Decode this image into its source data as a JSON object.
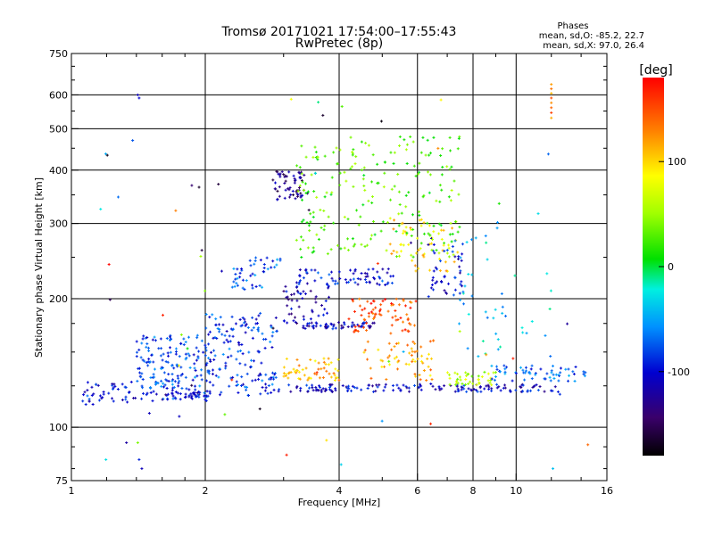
{
  "chart_data": {
    "type": "scatter",
    "title": "Tromsø 20171021 17:54:00–17:55:43",
    "subtitle": "RwPretec (8p)",
    "stats": {
      "heading": "Phases",
      "line_o": "mean, sd,O: -85.2, 22.7",
      "line_x": "mean, sd,X:  97.0, 26.4"
    },
    "xlabel": "Frequency [MHz]",
    "ylabel": "Stationary phase Virtual Height [km]",
    "x_scale": "log",
    "y_scale": "log",
    "xlim": [
      1,
      16
    ],
    "ylim": [
      75,
      750
    ],
    "x_ticks": [
      1,
      2,
      4,
      6,
      8,
      10,
      16
    ],
    "x_tick_labels": [
      "1",
      "2",
      "4",
      "6",
      "8",
      "10",
      "16"
    ],
    "y_ticks": [
      75,
      100,
      200,
      300,
      400,
      500,
      600,
      750
    ],
    "y_tick_labels": [
      "75",
      "100",
      "200",
      "300",
      "400",
      "500",
      "600",
      "750"
    ],
    "x_minor_ticks": [
      1.2,
      1.4,
      1.6,
      1.8,
      3,
      5,
      7,
      9,
      12,
      14
    ],
    "y_minor_ticks": [
      80,
      90,
      125,
      150,
      175,
      250,
      350,
      450,
      550,
      650,
      700
    ],
    "grid": true,
    "colorbar": {
      "label": "[deg]",
      "range": [
        -180,
        180
      ],
      "ticks": [
        -100,
        0,
        100
      ],
      "tick_labels": [
        "-100",
        "0",
        "100"
      ]
    },
    "clusters": [
      {
        "f": [
          1.05,
          1.4
        ],
        "h": [
          113,
          128
        ],
        "phase": -95,
        "n": 45
      },
      {
        "f": [
          1.4,
          2.05
        ],
        "h": [
          115,
          165
        ],
        "phase": -80,
        "n": 180
      },
      {
        "f": [
          1.55,
          2.0
        ],
        "h": [
          116,
          121
        ],
        "phase": -105,
        "n": 30
      },
      {
        "f": [
          2.0,
          2.9
        ],
        "h": [
          118,
          185
        ],
        "phase": -85,
        "n": 160
      },
      {
        "f": [
          2.3,
          2.95
        ],
        "h": [
          210,
          250
        ],
        "phase": -75,
        "n": 45
      },
      {
        "f": [
          2.8,
          3.4
        ],
        "h": [
          340,
          400
        ],
        "phase": -135,
        "n": 60
      },
      {
        "f": [
          3.0,
          3.8
        ],
        "h": [
          175,
          215
        ],
        "phase": -115,
        "n": 50
      },
      {
        "f": [
          3.3,
          4.8
        ],
        "h": [
          170,
          176
        ],
        "phase": -110,
        "n": 55
      },
      {
        "f": [
          3.2,
          5.3
        ],
        "h": [
          215,
          235
        ],
        "phase": -95,
        "n": 70
      },
      {
        "f": [
          2.9,
          12.5
        ],
        "h": [
          121,
          126
        ],
        "phase": -105,
        "n": 150
      },
      {
        "f": [
          3.0,
          4.0
        ],
        "h": [
          128,
          145
        ],
        "phase": 110,
        "n": 55
      },
      {
        "f": [
          4.2,
          6.0
        ],
        "h": [
          165,
          200
        ],
        "phase": 150,
        "n": 75
      },
      {
        "f": [
          4.5,
          6.6
        ],
        "h": [
          128,
          160
        ],
        "phase": 115,
        "n": 60
      },
      {
        "f": [
          5.2,
          7.4
        ],
        "h": [
          230,
          310
        ],
        "phase": 100,
        "n": 60
      },
      {
        "f": [
          6.3,
          7.6
        ],
        "h": [
          200,
          280
        ],
        "phase": -100,
        "n": 45
      },
      {
        "f": [
          3.2,
          7.5
        ],
        "h": [
          250,
          480
        ],
        "phase": 30,
        "n": 220
      },
      {
        "f": [
          7.0,
          9.0
        ],
        "h": [
          125,
          135
        ],
        "phase": 60,
        "n": 40
      },
      {
        "f": [
          8.8,
          14.5
        ],
        "h": [
          128,
          140
        ],
        "phase": -70,
        "n": 60
      },
      {
        "f": [
          7.3,
          12.0
        ],
        "h": [
          140,
          330
        ],
        "phase": -40,
        "n": 45
      },
      {
        "f": [
          1.1,
          14
        ],
        "h": [
          78,
          600
        ],
        "phase": 0,
        "n": 60
      }
    ],
    "points": [
      {
        "x": 12.0,
        "y": 635,
        "phase": 120
      },
      {
        "x": 12.0,
        "y": 620,
        "phase": 135
      },
      {
        "x": 12.0,
        "y": 605,
        "phase": 110
      },
      {
        "x": 12.0,
        "y": 590,
        "phase": 150
      },
      {
        "x": 12.0,
        "y": 575,
        "phase": 125
      },
      {
        "x": 12.0,
        "y": 560,
        "phase": 140
      },
      {
        "x": 12.0,
        "y": 545,
        "phase": 155
      },
      {
        "x": 12.0,
        "y": 530,
        "phase": 115
      },
      {
        "x": 1.41,
        "y": 600,
        "phase": -110
      },
      {
        "x": 1.42,
        "y": 590,
        "phase": -100
      },
      {
        "x": 1.33,
        "y": 92,
        "phase": -120
      },
      {
        "x": 1.44,
        "y": 80,
        "phase": -110
      },
      {
        "x": 1.42,
        "y": 84,
        "phase": -90
      },
      {
        "x": 1.41,
        "y": 92,
        "phase": 40
      },
      {
        "x": 12.1,
        "y": 80,
        "phase": -40
      },
      {
        "x": 14.5,
        "y": 91,
        "phase": 140
      }
    ]
  }
}
